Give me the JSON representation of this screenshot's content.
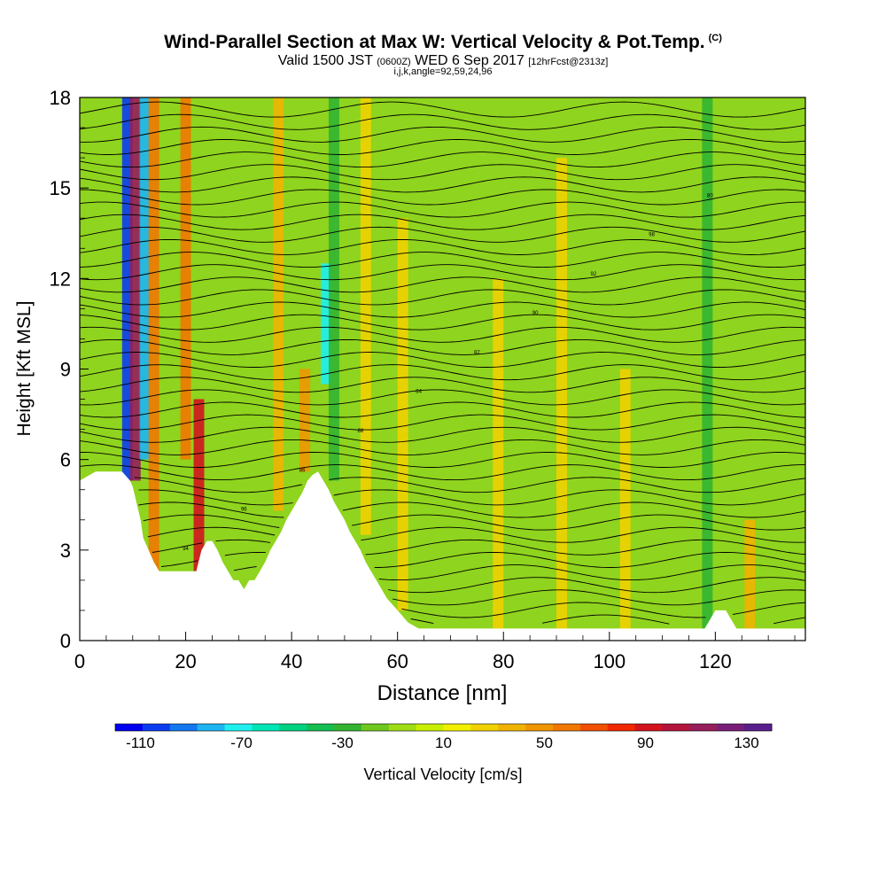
{
  "title": {
    "main": "Wind-Parallel Section at Max W: Vertical Velocity & Pot.Temp.",
    "copyright_mark": "(C)",
    "valid_prefix": "Valid 1500 JST",
    "valid_utc": "(0600Z)",
    "valid_date": "WED 6 Sep 2017",
    "forecast_info": "[12hrFcst@2313z]",
    "section_params": "i,j,k,angle=92,59,24,96"
  },
  "colors": {
    "scale": [
      "#0000f0",
      "#0a3cf0",
      "#1478f0",
      "#1eb4f0",
      "#1ef0f0",
      "#00e6b4",
      "#00d282",
      "#14be50",
      "#32b432",
      "#6ec81e",
      "#a0dc14",
      "#c8ee00",
      "#f0f000",
      "#f0d200",
      "#f0b400",
      "#f09600",
      "#f07800",
      "#f05000",
      "#f02800",
      "#d2141e",
      "#b4143c",
      "#961e5a",
      "#781e78",
      "#5a1e8c"
    ],
    "background_field": "#8fd41e",
    "terrain": "#ffffff",
    "contour": "#000000"
  },
  "chart_data": {
    "type": "heatmap",
    "xlabel": "Distance [nm]",
    "ylabel": "Height [Kft MSL]",
    "xlim": [
      0,
      137
    ],
    "ylim": [
      0,
      18
    ],
    "xticks": [
      0,
      20,
      40,
      60,
      80,
      100,
      120
    ],
    "yticks": [
      0,
      3,
      6,
      9,
      12,
      15,
      18
    ],
    "colorbar": {
      "label": "Vertical Velocity [cm/s]",
      "tick_labels": [
        "-110",
        "-70",
        "-30",
        "10",
        "50",
        "90",
        "130"
      ],
      "tick_values": [
        -110,
        -70,
        -30,
        10,
        50,
        90,
        130
      ],
      "range": [
        -120,
        140
      ],
      "interval": 10
    },
    "terrain_profile": {
      "x": [
        0,
        3,
        8,
        9.5,
        10,
        11.5,
        12,
        13,
        14,
        15,
        16,
        17,
        18,
        19,
        20,
        21,
        22,
        23,
        24,
        25,
        26,
        27,
        28,
        29,
        30,
        31,
        32,
        33,
        34,
        35,
        36,
        37,
        38,
        39,
        40,
        41,
        42,
        43,
        44,
        45,
        46,
        47,
        48,
        49,
        50,
        51,
        52,
        53,
        54,
        55,
        56,
        57,
        58,
        59,
        60,
        61,
        62,
        63,
        64,
        65,
        66,
        67,
        68,
        69,
        70,
        118,
        119,
        120,
        121,
        122,
        123,
        124,
        125,
        137
      ],
      "height": [
        5.3,
        5.6,
        5.6,
        5.3,
        5.1,
        4.0,
        3.4,
        3.0,
        2.6,
        2.3,
        2.3,
        2.3,
        2.3,
        2.3,
        2.3,
        2.3,
        2.3,
        3.0,
        3.3,
        3.3,
        3.0,
        2.6,
        2.3,
        2.0,
        2.0,
        1.7,
        2.0,
        2.0,
        2.3,
        2.6,
        3.0,
        3.3,
        3.6,
        4.0,
        4.3,
        4.6,
        4.9,
        5.3,
        5.5,
        5.6,
        5.3,
        5.0,
        4.6,
        4.3,
        4.0,
        3.6,
        3.3,
        3.0,
        2.6,
        2.3,
        2.0,
        1.7,
        1.4,
        1.2,
        1.0,
        0.8,
        0.6,
        0.5,
        0.4,
        0.4,
        0.4,
        0.4,
        0.4,
        0.4,
        0.4,
        0.4,
        0.7,
        1.0,
        1.0,
        1.0,
        0.7,
        0.4,
        0.4,
        0.4
      ]
    },
    "vertical_velocity_features": [
      {
        "x": 9.0,
        "min_height": 5.3,
        "max_height": 18,
        "value": -110
      },
      {
        "x": 10.5,
        "min_height": 5.3,
        "max_height": 18,
        "value": 90
      },
      {
        "x": 12.3,
        "min_height": 6.0,
        "max_height": 18,
        "value": -90
      },
      {
        "x": 14.0,
        "min_height": 2.3,
        "max_height": 18,
        "value": 40
      },
      {
        "x": 20.0,
        "min_height": 6.0,
        "max_height": 18,
        "value": 40
      },
      {
        "x": 22.5,
        "min_height": 2.3,
        "max_height": 8.0,
        "value": 70
      },
      {
        "x": 37.5,
        "min_height": 4.3,
        "max_height": 18,
        "value": 20
      },
      {
        "x": 42.5,
        "min_height": 5.6,
        "max_height": 9.0,
        "value": 30
      },
      {
        "x": 46.5,
        "min_height": 8.5,
        "max_height": 12.5,
        "value": -80
      },
      {
        "x": 48.0,
        "min_height": 5.3,
        "max_height": 18,
        "value": -40
      },
      {
        "x": 54.0,
        "min_height": 3.5,
        "max_height": 18,
        "value": 15
      },
      {
        "x": 61.0,
        "min_height": 1.0,
        "max_height": 14.0,
        "value": 10
      },
      {
        "x": 79.0,
        "min_height": 0.4,
        "max_height": 12.0,
        "value": 10
      },
      {
        "x": 91.0,
        "min_height": 0.4,
        "max_height": 16.0,
        "value": 10
      },
      {
        "x": 103.0,
        "min_height": 0.4,
        "max_height": 9.0,
        "value": 10
      },
      {
        "x": 118.5,
        "min_height": 0.4,
        "max_height": 18,
        "value": -40
      },
      {
        "x": 126.5,
        "min_height": 0.4,
        "max_height": 4.0,
        "value": 20
      }
    ],
    "potential_temperature_contours": {
      "series_count": 42,
      "surface_height": 0.6,
      "top_height": 17.6,
      "sample_labels": [
        "94",
        "96",
        "86",
        "88",
        "84",
        "82",
        "90",
        "92",
        "98",
        "80"
      ]
    }
  }
}
